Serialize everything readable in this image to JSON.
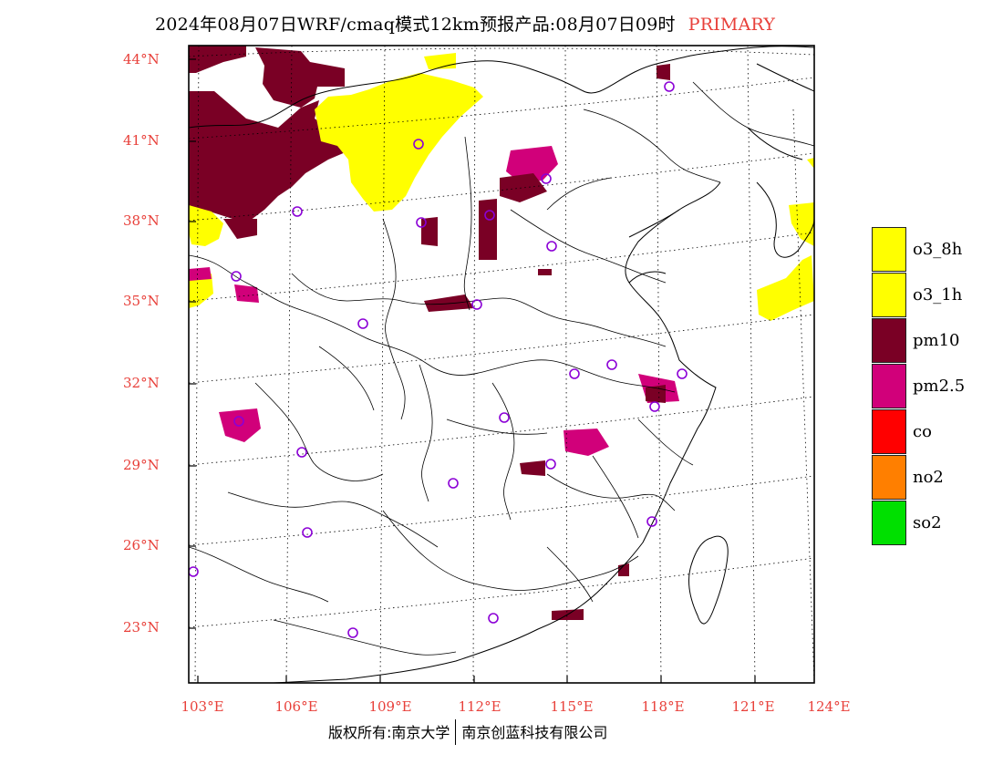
{
  "header": {
    "title": "2024年08月07日WRF/cmaq模式12km预报产品:08月07日09时",
    "tag": "PRIMARY"
  },
  "map": {
    "lat_labels": [
      "44°N",
      "41°N",
      "38°N",
      "35°N",
      "32°N",
      "29°N",
      "26°N",
      "23°N"
    ],
    "lon_labels": [
      "103°E",
      "106°E",
      "109°E",
      "112°E",
      "115°E",
      "118°E",
      "121°E",
      "124°E"
    ],
    "colors": {
      "pm10": "#7a0025",
      "pm25": "#d1007a",
      "o3": "#ffff00",
      "frame": "#000000",
      "station_marker": "#8b00d6"
    },
    "station_marker_icon": "circle-marker-icon"
  },
  "legend": {
    "items": [
      {
        "label": "o3_8h",
        "color": "#ffff00"
      },
      {
        "label": "o3_1h",
        "color": "#ffff00"
      },
      {
        "label": "pm10",
        "color": "#7a0025"
      },
      {
        "label": "pm2.5",
        "color": "#d1007a"
      },
      {
        "label": "co",
        "color": "#ff0000"
      },
      {
        "label": "no2",
        "color": "#ff7f00"
      },
      {
        "label": "so2",
        "color": "#00e000"
      }
    ]
  },
  "footer": {
    "left": "版权所有:南京大学",
    "right": "南京创蓝科技有限公司"
  }
}
